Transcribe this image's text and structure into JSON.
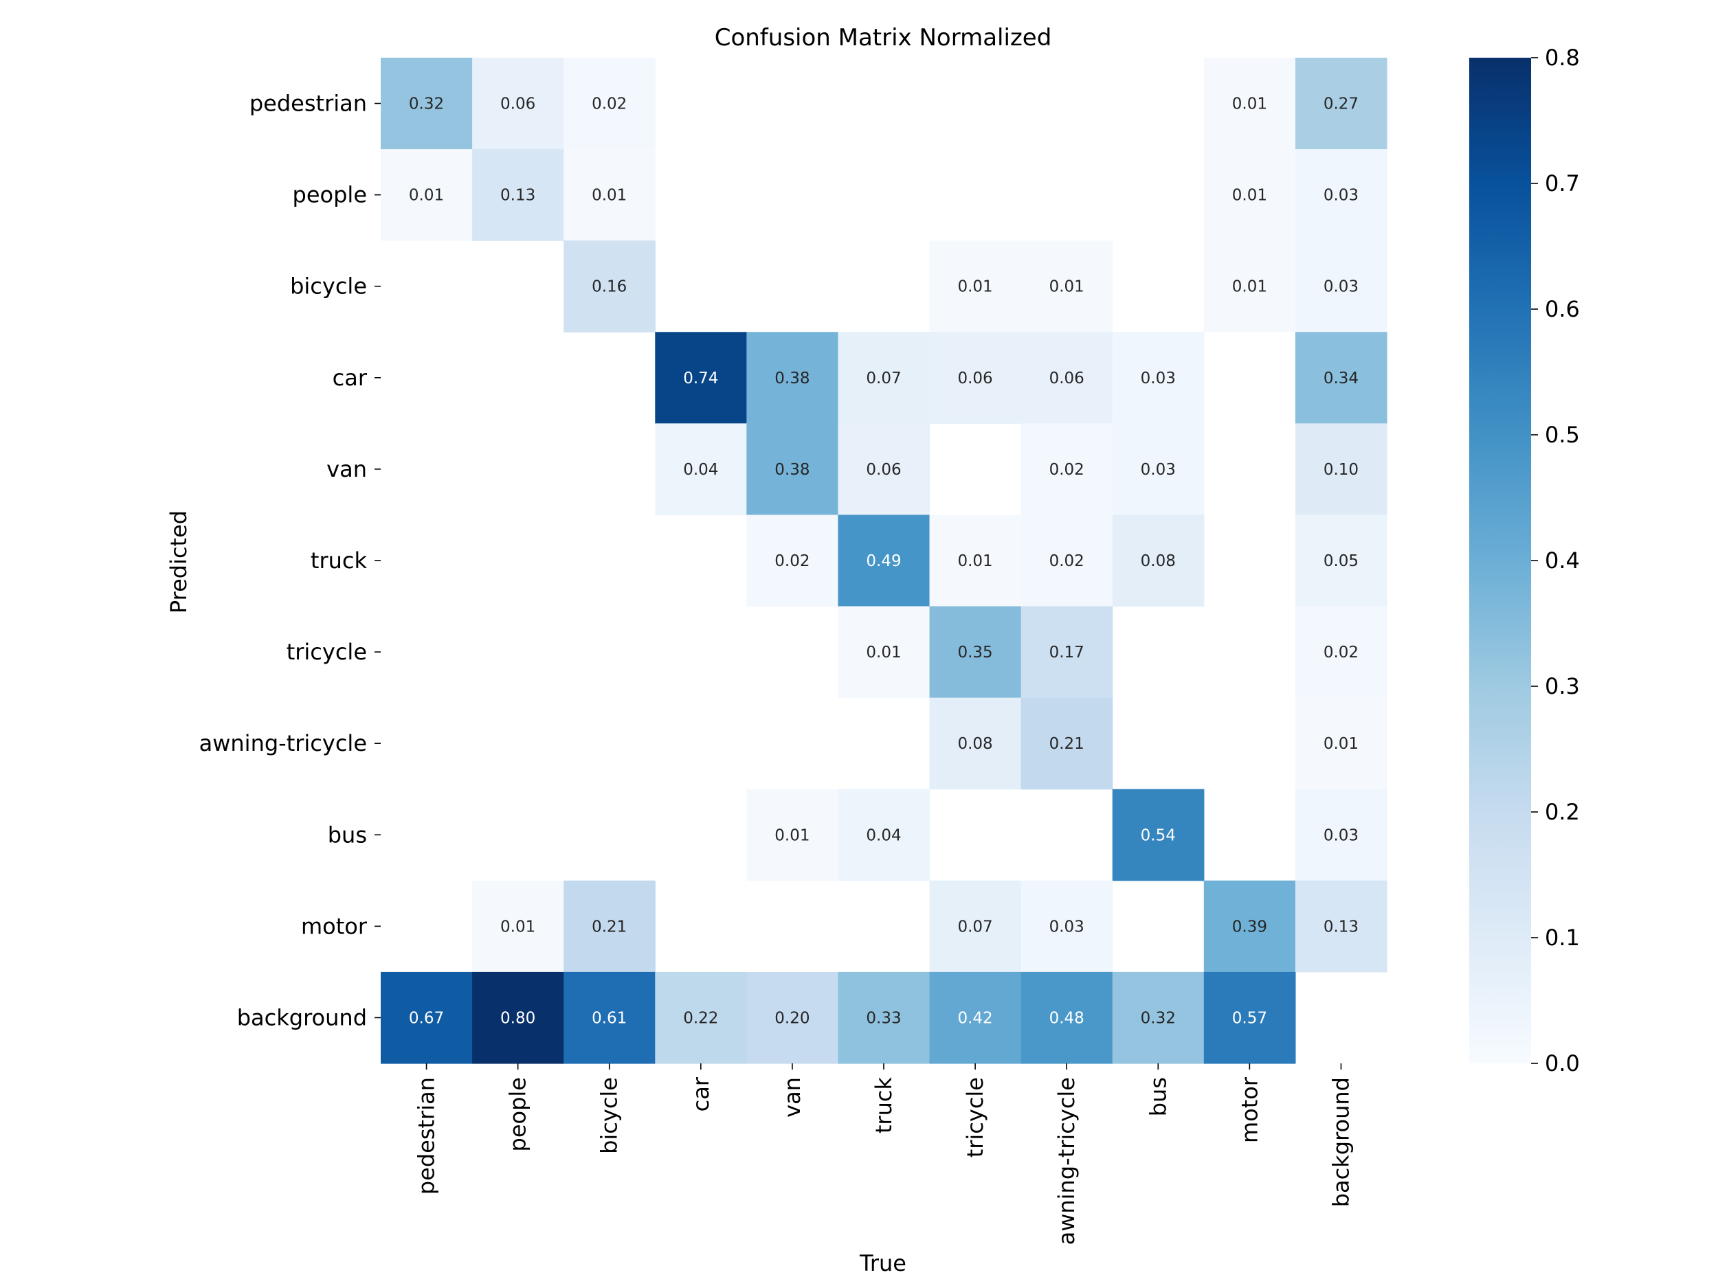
{
  "chart_data": {
    "type": "heatmap",
    "title": "Confusion Matrix Normalized",
    "xlabel": "True",
    "ylabel": "Predicted",
    "x_categories": [
      "pedestrian",
      "people",
      "bicycle",
      "car",
      "van",
      "truck",
      "tricycle",
      "awning-tricycle",
      "bus",
      "motor",
      "background"
    ],
    "y_categories": [
      "pedestrian",
      "people",
      "bicycle",
      "car",
      "van",
      "truck",
      "tricycle",
      "awning-tricycle",
      "bus",
      "motor",
      "background"
    ],
    "values": [
      [
        0.32,
        0.06,
        0.02,
        null,
        null,
        null,
        null,
        null,
        null,
        0.01,
        0.27
      ],
      [
        0.01,
        0.13,
        0.01,
        null,
        null,
        null,
        null,
        null,
        null,
        0.01,
        0.03
      ],
      [
        null,
        null,
        0.16,
        null,
        null,
        null,
        0.01,
        0.01,
        null,
        0.01,
        0.03
      ],
      [
        null,
        null,
        null,
        0.74,
        0.38,
        0.07,
        0.06,
        0.06,
        0.03,
        null,
        0.34
      ],
      [
        null,
        null,
        null,
        0.04,
        0.38,
        0.06,
        null,
        0.02,
        0.03,
        null,
        0.1
      ],
      [
        null,
        null,
        null,
        null,
        0.02,
        0.49,
        0.01,
        0.02,
        0.08,
        null,
        0.05
      ],
      [
        null,
        null,
        null,
        null,
        null,
        0.01,
        0.35,
        0.17,
        null,
        null,
        0.02
      ],
      [
        null,
        null,
        null,
        null,
        null,
        null,
        0.08,
        0.21,
        null,
        null,
        0.01
      ],
      [
        null,
        null,
        null,
        null,
        0.01,
        0.04,
        null,
        null,
        0.54,
        null,
        0.03
      ],
      [
        null,
        0.01,
        0.21,
        null,
        null,
        null,
        0.07,
        0.03,
        null,
        0.39,
        0.13
      ],
      [
        0.67,
        0.8,
        0.61,
        0.22,
        0.2,
        0.33,
        0.42,
        0.48,
        0.32,
        0.57,
        null
      ]
    ],
    "colorbar": {
      "colormap": "Blues",
      "range": [
        0.0,
        0.8
      ],
      "ticks": [
        "0.0",
        "0.1",
        "0.2",
        "0.3",
        "0.4",
        "0.5",
        "0.6",
        "0.7",
        "0.8"
      ]
    },
    "grid": false,
    "legend": "colorbar-right"
  }
}
